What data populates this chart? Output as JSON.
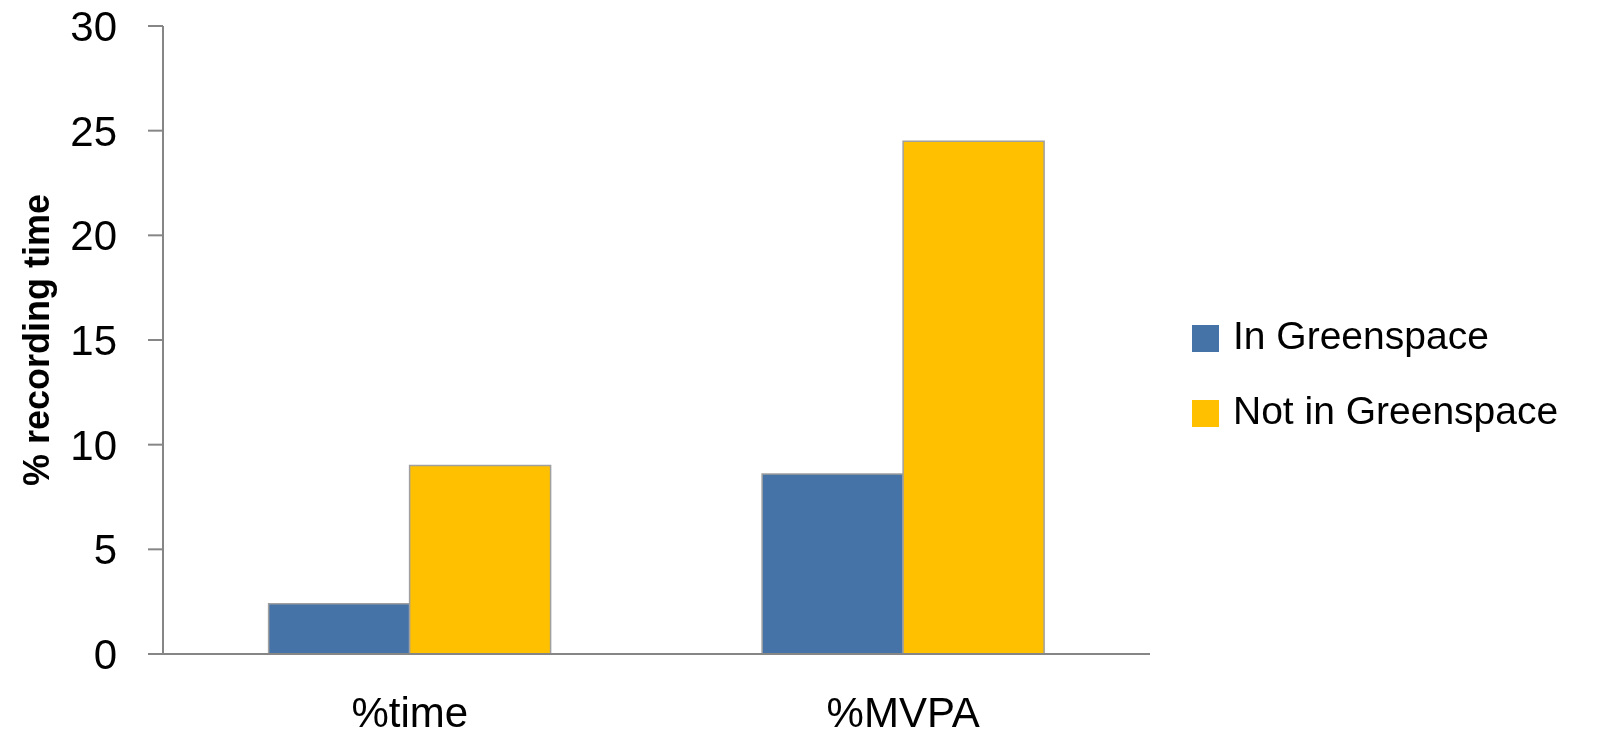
{
  "chart_data": {
    "type": "bar",
    "categories": [
      "%time",
      "%MVPA"
    ],
    "ylabel": "% recording time",
    "series": [
      {
        "name": "In Greenspace",
        "color": "#4673a7",
        "values": [
          2.4,
          8.6
        ]
      },
      {
        "name": "Not in Greenspace",
        "color": "#ffc000",
        "values": [
          9.0,
          24.5
        ]
      }
    ],
    "ylim": [
      0,
      30
    ],
    "yticks": [
      0,
      5,
      10,
      15,
      20,
      25,
      30
    ],
    "legend": "right"
  }
}
